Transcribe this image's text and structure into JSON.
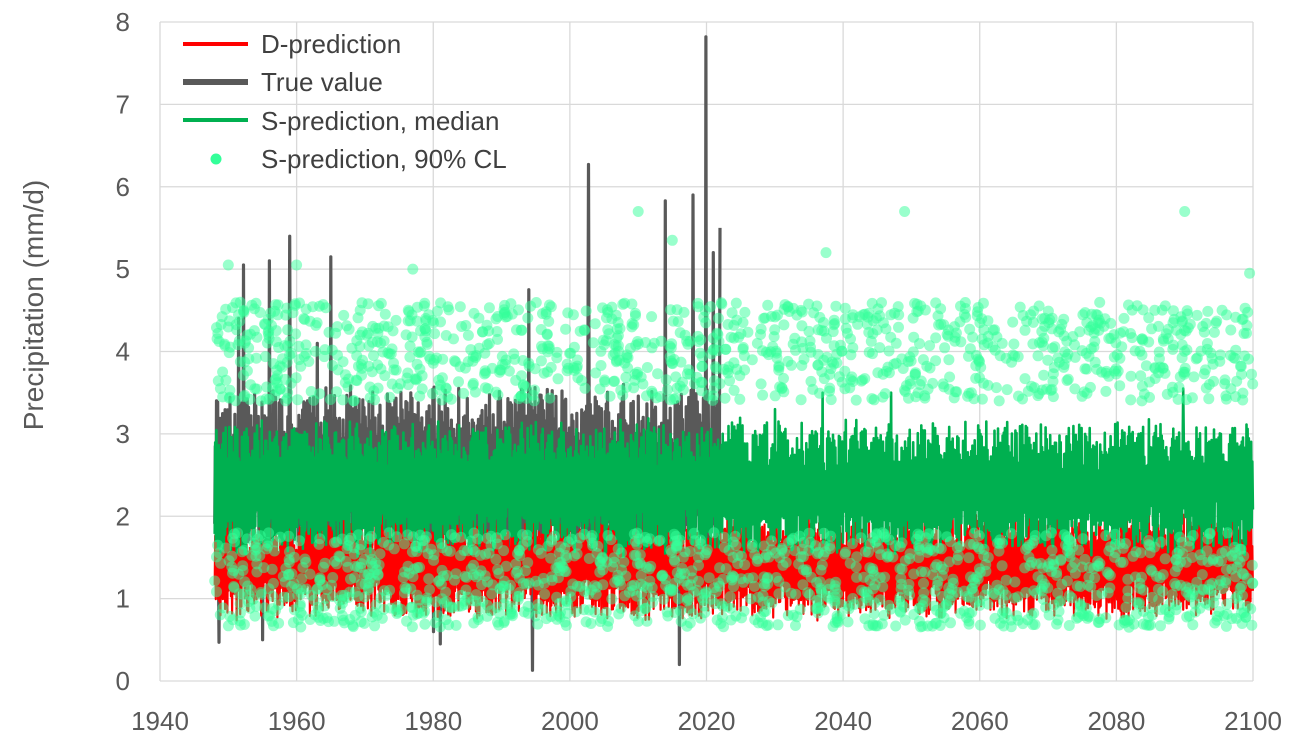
{
  "chart_data": {
    "type": "line",
    "title": "",
    "xlabel": "",
    "ylabel": "Precipitation (mm/d)",
    "xlim": [
      1940,
      2100
    ],
    "ylim": [
      0,
      8
    ],
    "x_ticks": [
      "1940",
      "1960",
      "1980",
      "2000",
      "2020",
      "2040",
      "2060",
      "2080",
      "2100"
    ],
    "y_ticks": [
      "0",
      "1",
      "2",
      "3",
      "4",
      "5",
      "6",
      "7",
      "8"
    ],
    "grid": true,
    "legend_position": "top-left",
    "colors": {
      "d_prediction": "#ff0000",
      "true_value": "#595959",
      "s_median": "#00b050",
      "s_cl": "#33ff99"
    },
    "series": [
      {
        "name": "D-prediction",
        "style": "line",
        "color": "#ff0000",
        "x_range": [
          1948,
          2100
        ],
        "typical_low": 0.8,
        "typical_high": 2.0,
        "peak_max": 2.3
      },
      {
        "name": "True value",
        "style": "line",
        "color": "#595959",
        "x_range": [
          1948,
          2022
        ],
        "typical_low": 1.5,
        "typical_high": 3.5,
        "peaks": [
          {
            "x": 1948.3,
            "y": 3.4
          },
          {
            "x": 1948.6,
            "y": 0.47
          },
          {
            "x": 1951.5,
            "y": 4.4
          },
          {
            "x": 1952.2,
            "y": 5.05
          },
          {
            "x": 1955.0,
            "y": 0.5
          },
          {
            "x": 1956.0,
            "y": 5.1
          },
          {
            "x": 1959.0,
            "y": 5.4
          },
          {
            "x": 1963.0,
            "y": 4.1
          },
          {
            "x": 1965.0,
            "y": 5.15
          },
          {
            "x": 1980.0,
            "y": 0.6
          },
          {
            "x": 1981.0,
            "y": 0.45
          },
          {
            "x": 1994.0,
            "y": 4.75
          },
          {
            "x": 1994.5,
            "y": 0.13
          },
          {
            "x": 2002.7,
            "y": 6.27
          },
          {
            "x": 2014.0,
            "y": 5.83
          },
          {
            "x": 2016.0,
            "y": 0.2
          },
          {
            "x": 2018.0,
            "y": 5.9
          },
          {
            "x": 2019.9,
            "y": 7.82
          },
          {
            "x": 2021.0,
            "y": 5.2
          },
          {
            "x": 2022.0,
            "y": 5.5
          }
        ]
      },
      {
        "name": "S-prediction, median",
        "style": "line",
        "color": "#00b050",
        "x_range": [
          1948,
          2100
        ],
        "typical_low": 1.6,
        "typical_high": 3.1,
        "peaks": [
          {
            "x": 2030.0,
            "y": 3.3
          },
          {
            "x": 2037.0,
            "y": 3.5
          },
          {
            "x": 2047.0,
            "y": 3.5
          },
          {
            "x": 2089.8,
            "y": 3.55
          }
        ]
      },
      {
        "name": "S-prediction, 90% CL",
        "style": "scatter",
        "color": "#33ff99",
        "x_range": [
          1948,
          2100
        ],
        "upper_band": [
          3.4,
          4.6
        ],
        "lower_band": [
          0.65,
          1.8
        ],
        "outliers": [
          {
            "x": 1950.0,
            "y": 5.05
          },
          {
            "x": 1960.0,
            "y": 5.05
          },
          {
            "x": 1977.0,
            "y": 5.0
          },
          {
            "x": 2010.0,
            "y": 5.7
          },
          {
            "x": 2015.0,
            "y": 5.35
          },
          {
            "x": 2037.5,
            "y": 5.2
          },
          {
            "x": 2049.0,
            "y": 5.7
          },
          {
            "x": 2090.0,
            "y": 5.7
          },
          {
            "x": 2099.5,
            "y": 4.95
          }
        ]
      }
    ]
  }
}
